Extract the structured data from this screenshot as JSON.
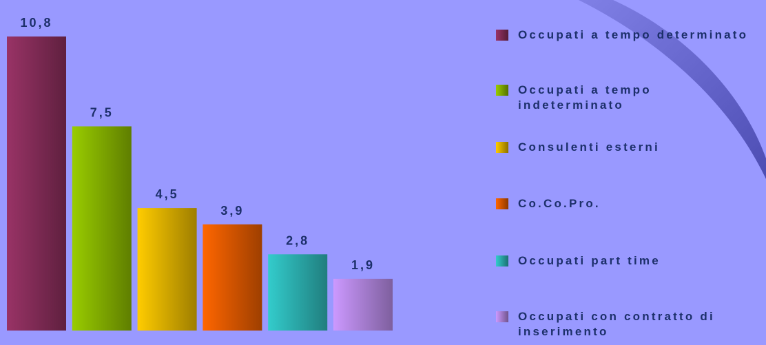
{
  "chart_data": {
    "type": "bar",
    "series": [
      {
        "name": "Occupati a tempo determinato",
        "color": "#993366",
        "values": [
          10.8
        ],
        "value_labels": [
          "10,8"
        ]
      },
      {
        "name": "Occupati a tempo indeterminato",
        "color": "#99cc00",
        "values": [
          7.5
        ],
        "value_labels": [
          "7,5"
        ]
      },
      {
        "name": "Consulenti esterni",
        "color": "#ffcc00",
        "values": [
          4.5
        ],
        "value_labels": [
          "4,5"
        ]
      },
      {
        "name": "Co.Co.Pro.",
        "color": "#ff6600",
        "values": [
          3.9
        ],
        "value_labels": [
          "3,9"
        ]
      },
      {
        "name": "Occupati part time",
        "color": "#33cccc",
        "values": [
          2.8
        ],
        "value_labels": [
          "2,8"
        ]
      },
      {
        "name": "Occupati con contratto di inserimento",
        "color": "#cc99ff",
        "values": [
          1.9
        ],
        "value_labels": [
          "1,9"
        ]
      }
    ]
  }
}
